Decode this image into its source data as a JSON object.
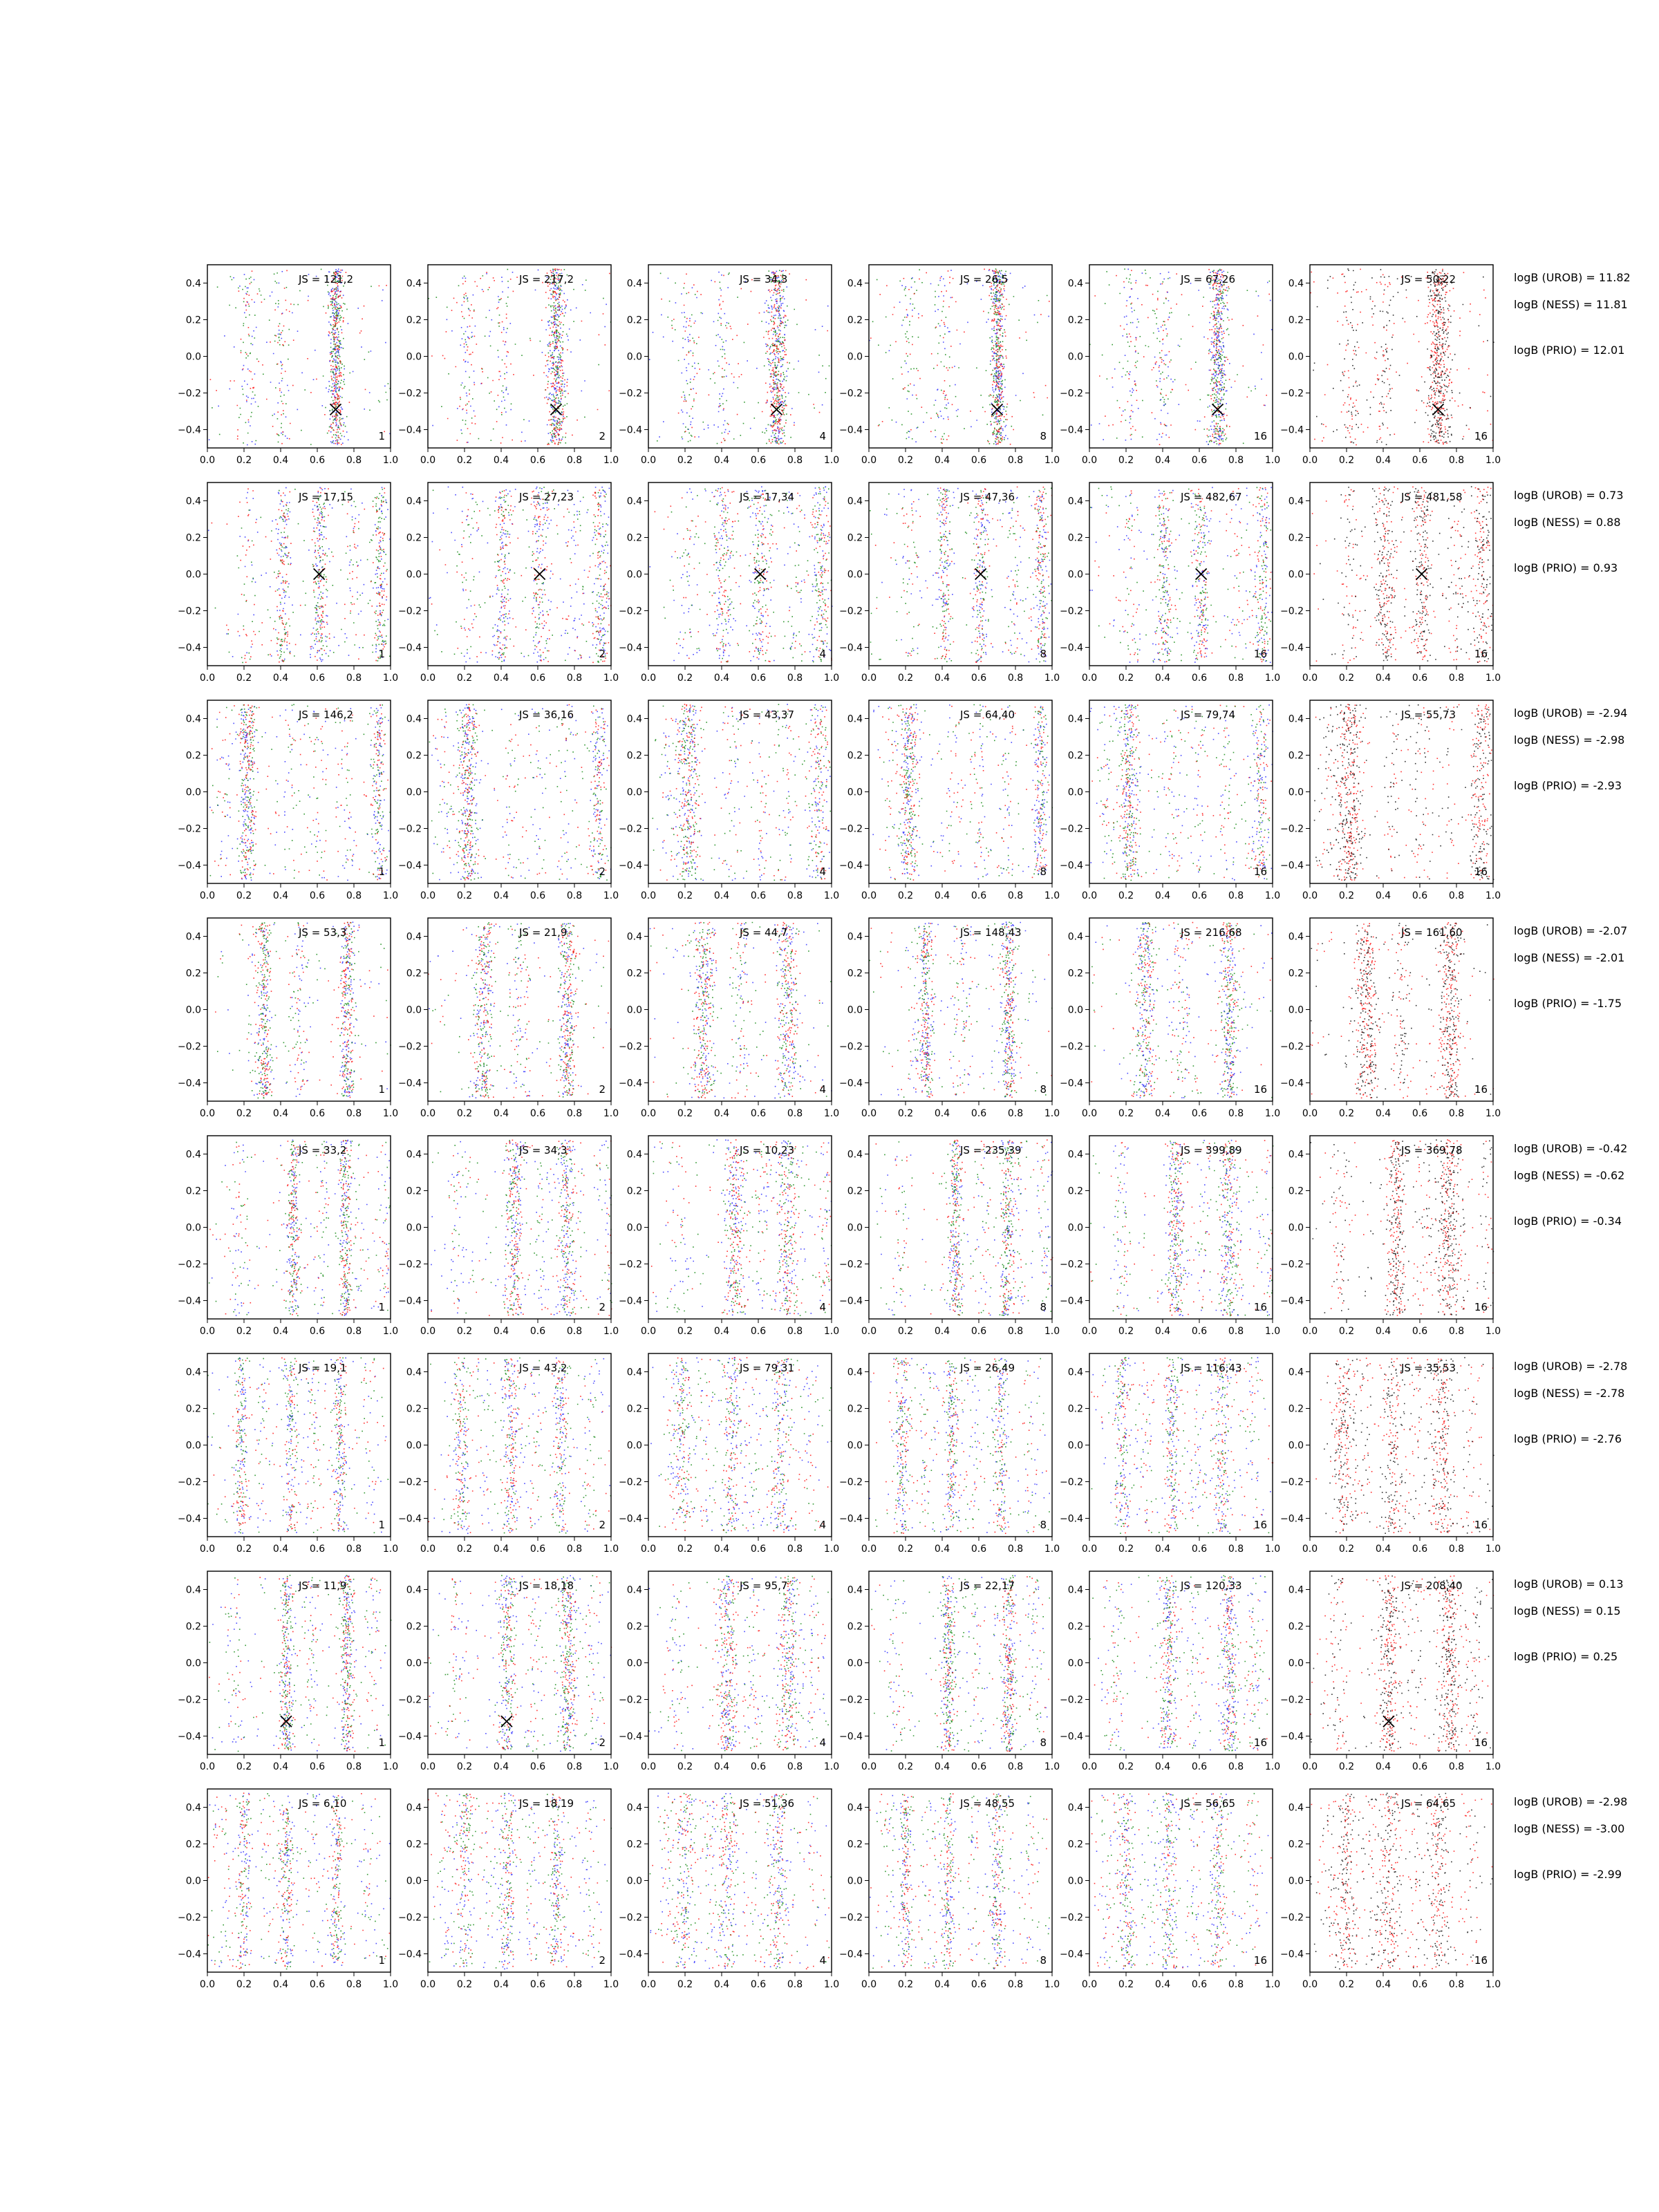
{
  "figure": {
    "grid": false,
    "legend": "none",
    "colors": {
      "blue": "#1f1fff",
      "green": "#008000",
      "red": "#ff0000",
      "black": "#000000",
      "frame": "#000000"
    }
  },
  "chart_data": {
    "type": "scatter",
    "panel_grid": {
      "rows": 8,
      "cols": 6
    },
    "xlim": [
      0.0,
      1.0
    ],
    "ylim": [
      -0.5,
      0.5
    ],
    "xticks": [
      "0.0",
      "0.2",
      "0.4",
      "0.6",
      "0.8",
      "1.0"
    ],
    "yticks": [
      "0.4",
      "0.2",
      "0.0",
      "−0.2",
      "−0.4"
    ],
    "ytick_values": [
      0.4,
      0.2,
      0.0,
      -0.2,
      -0.4
    ],
    "panel_corner_labels": [
      "1",
      "2",
      "4",
      "8",
      "16",
      "16"
    ],
    "rows": [
      {
        "js": [
          "JS = 121,2",
          "JS = 217,2",
          "JS = 34,3",
          "JS = 26,5",
          "JS = 67,26",
          "JS = 50,22"
        ],
        "logB": [
          "logB (UROB) = 11.82",
          "logB (NESS) = 11.81",
          "logB (PRIO) = 12.01"
        ],
        "marker": [
          0.7,
          -0.29
        ],
        "marker_panels": [
          0,
          1,
          2,
          3,
          4,
          5
        ],
        "bands": [
          0.7
        ],
        "background_bands": [
          0.22,
          0.4,
          0.7
        ]
      },
      {
        "js": [
          "JS = 17,15",
          "JS = 27,23",
          "JS = 17,34",
          "JS = 47,36",
          "JS = 482,67",
          "JS = 481,58"
        ],
        "logB": [
          "logB (UROB) = 0.73",
          "logB (NESS) = 0.88",
          "logB (PRIO) = 0.93"
        ],
        "marker": [
          0.61,
          0.0
        ],
        "marker_panels": [
          0,
          1,
          2,
          3,
          4,
          5
        ],
        "bands": [
          0.61,
          0.41,
          0.94
        ],
        "background_bands": [
          0.22,
          0.4,
          0.61,
          0.8,
          0.94
        ]
      },
      {
        "js": [
          "JS = 146,2",
          "JS = 36,16",
          "JS = 43,37",
          "JS = 64,40",
          "JS = 79,74",
          "JS = 55,73"
        ],
        "logB": [
          "logB (UROB) = -2.94",
          "logB (NESS) = -2.98",
          "logB (PRIO) = -2.93"
        ],
        "marker": null,
        "marker_panels": [],
        "bands": [
          0.23,
          0.2,
          0.93
        ],
        "background_bands": [
          0.1,
          0.23,
          0.45,
          0.6,
          0.75,
          0.93
        ]
      },
      {
        "js": [
          "JS = 53,3",
          "JS = 21,9",
          "JS = 44,7",
          "JS = 148,43",
          "JS = 216,68",
          "JS = 161,60"
        ],
        "logB": [
          "logB (UROB) = -2.07",
          "logB (NESS) = -2.01",
          "logB (PRIO) = -1.75"
        ],
        "marker": null,
        "marker_panels": [],
        "bands": [
          0.31,
          0.76
        ],
        "background_bands": [
          0.28,
          0.5,
          0.76
        ]
      },
      {
        "js": [
          "JS = 33,2",
          "JS = 34,3",
          "JS = 10,23",
          "JS = 235,39",
          "JS = 399,89",
          "JS = 369,78"
        ],
        "logB": [
          "logB (UROB) = -0.42",
          "logB (NESS) = -0.62",
          "logB (PRIO) = -0.34"
        ],
        "marker": null,
        "marker_panels": [],
        "bands": [
          0.47,
          0.75
        ],
        "background_bands": [
          0.17,
          0.47,
          0.62,
          0.8,
          0.97
        ]
      },
      {
        "js": [
          "JS = 19,1",
          "JS = 43,2",
          "JS = 79,31",
          "JS = 26,49",
          "JS = 116,43",
          "JS = 35,53"
        ],
        "logB": [
          "logB (UROB) = -2.78",
          "logB (NESS) = -2.78",
          "logB (PRIO) = -2.76"
        ],
        "marker": null,
        "marker_panels": [],
        "bands": [
          0.18,
          0.45,
          0.72
        ],
        "background_bands": [
          0.18,
          0.3,
          0.45,
          0.57,
          0.72,
          0.88
        ]
      },
      {
        "js": [
          "JS = 11,9",
          "JS = 18,18",
          "JS = 95,7",
          "JS = 22,17",
          "JS = 120,33",
          "JS = 208,40"
        ],
        "logB": [
          "logB (UROB) = 0.13",
          "logB (NESS) = 0.15",
          "logB (PRIO) = 0.25"
        ],
        "marker": [
          0.43,
          -0.32
        ],
        "marker_panels": [
          0,
          1,
          5
        ],
        "bands": [
          0.43,
          0.76
        ],
        "background_bands": [
          0.15,
          0.43,
          0.57,
          0.76,
          0.9
        ]
      },
      {
        "js": [
          "JS = 6,10",
          "JS = 18,19",
          "JS = 51,36",
          "JS = 48,55",
          "JS = 56,65",
          "JS = 64,65"
        ],
        "logB": [
          "logB (UROB) = -2.98",
          "logB (NESS) = -3.00",
          "logB (PRIO) = -2.99"
        ],
        "marker": null,
        "marker_panels": [],
        "bands": [
          0.2,
          0.43,
          0.7
        ],
        "background_bands": [
          0.1,
          0.2,
          0.33,
          0.43,
          0.57,
          0.7,
          0.88
        ]
      }
    ]
  }
}
